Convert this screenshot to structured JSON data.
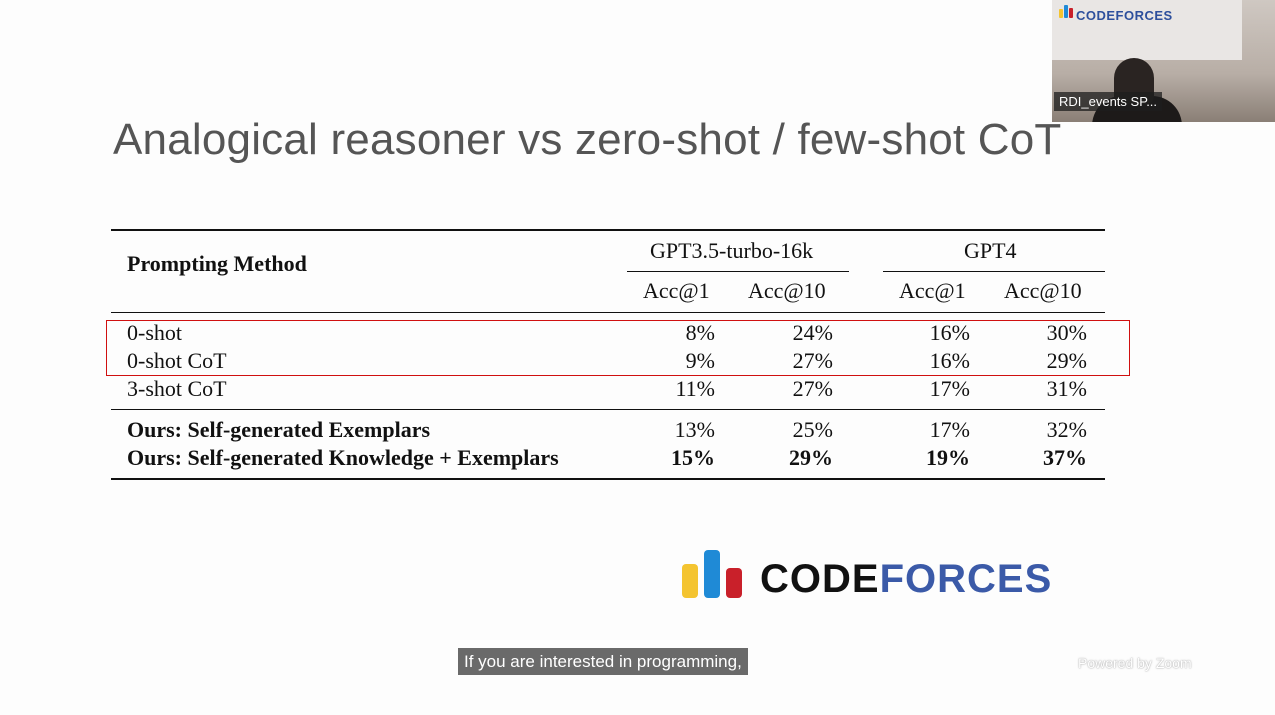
{
  "slide": {
    "title": "Analogical reasoner vs zero-shot / few-shot CoT"
  },
  "table": {
    "method_header": "Prompting Method",
    "model_groups": [
      "GPT3.5-turbo-16k",
      "GPT4"
    ],
    "metric_headers": [
      "Acc@1",
      "Acc@10",
      "Acc@1",
      "Acc@10"
    ],
    "rows": [
      {
        "method": "0-shot",
        "values": [
          "8%",
          "24%",
          "16%",
          "30%"
        ],
        "bold": false,
        "highlighted": true
      },
      {
        "method": "0-shot CoT",
        "values": [
          "9%",
          "27%",
          "16%",
          "29%"
        ],
        "bold": false,
        "highlighted": true
      },
      {
        "method": "3-shot CoT",
        "values": [
          "11%",
          "27%",
          "17%",
          "31%"
        ],
        "bold": false,
        "highlighted": false
      },
      {
        "method": "Ours: Self-generated Exemplars",
        "values": [
          "13%",
          "25%",
          "17%",
          "32%"
        ],
        "bold": false,
        "method_bold": true
      },
      {
        "method": "Ours: Self-generated Knowledge + Exemplars",
        "values": [
          "15%",
          "29%",
          "19%",
          "37%"
        ],
        "bold": true,
        "method_bold": true
      }
    ]
  },
  "highlight_color": "#d01010",
  "logo": {
    "code": "CODE",
    "forces": "FORCES",
    "bar_colors": [
      "#f4c430",
      "#1f8ad6",
      "#c9202a"
    ]
  },
  "video_tile": {
    "participant_name": "RDI_events SP...",
    "background_logo": "CODEFORCES"
  },
  "caption": {
    "text": "If you are interested in programming,"
  },
  "watermark": {
    "text": "Powered by Zoom"
  }
}
